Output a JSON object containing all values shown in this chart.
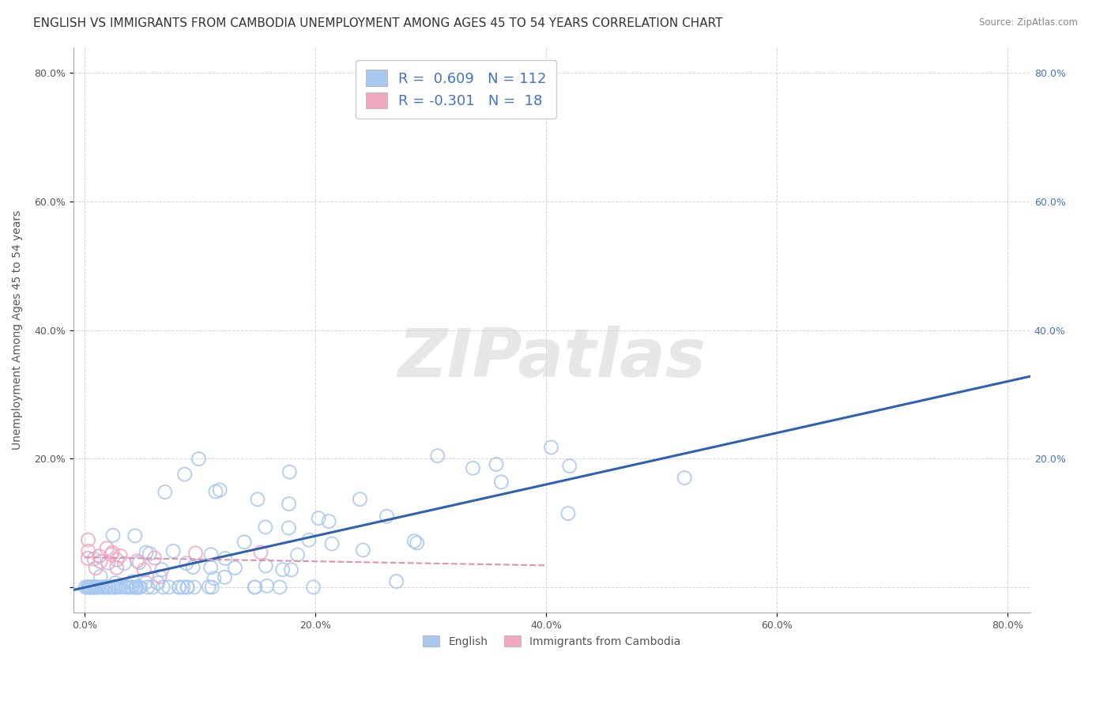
{
  "title": "ENGLISH VS IMMIGRANTS FROM CAMBODIA UNEMPLOYMENT AMONG AGES 45 TO 54 YEARS CORRELATION CHART",
  "source": "Source: ZipAtlas.com",
  "ylabel": "Unemployment Among Ages 45 to 54 years",
  "xlim": [
    -0.01,
    0.82
  ],
  "ylim": [
    -0.04,
    0.84
  ],
  "xticks": [
    0.0,
    0.2,
    0.4,
    0.6,
    0.8
  ],
  "yticks": [
    0.0,
    0.2,
    0.4,
    0.6,
    0.8
  ],
  "xtick_labels": [
    "0.0%",
    "20.0%",
    "40.0%",
    "60.0%",
    "80.0%"
  ],
  "ytick_labels": [
    "",
    "20.0%",
    "40.0%",
    "60.0%",
    "80.0%"
  ],
  "right_ytick_labels": [
    "80.0%",
    "60.0%",
    "40.0%",
    "20.0%"
  ],
  "english_R": 0.609,
  "english_N": 112,
  "cambodia_R": -0.301,
  "cambodia_N": 18,
  "english_color": "#a8c8f0",
  "cambodia_color": "#f0a8c0",
  "english_line_color": "#3060b0",
  "cambodia_line_color": "#e090b0",
  "legend_color": "#4472c4",
  "watermark": "ZIPatlas",
  "background_color": "#ffffff",
  "grid_color": "#cccccc",
  "title_fontsize": 11,
  "axis_fontsize": 10,
  "tick_fontsize": 9,
  "english_seed": 42,
  "cambodia_seed": 7
}
